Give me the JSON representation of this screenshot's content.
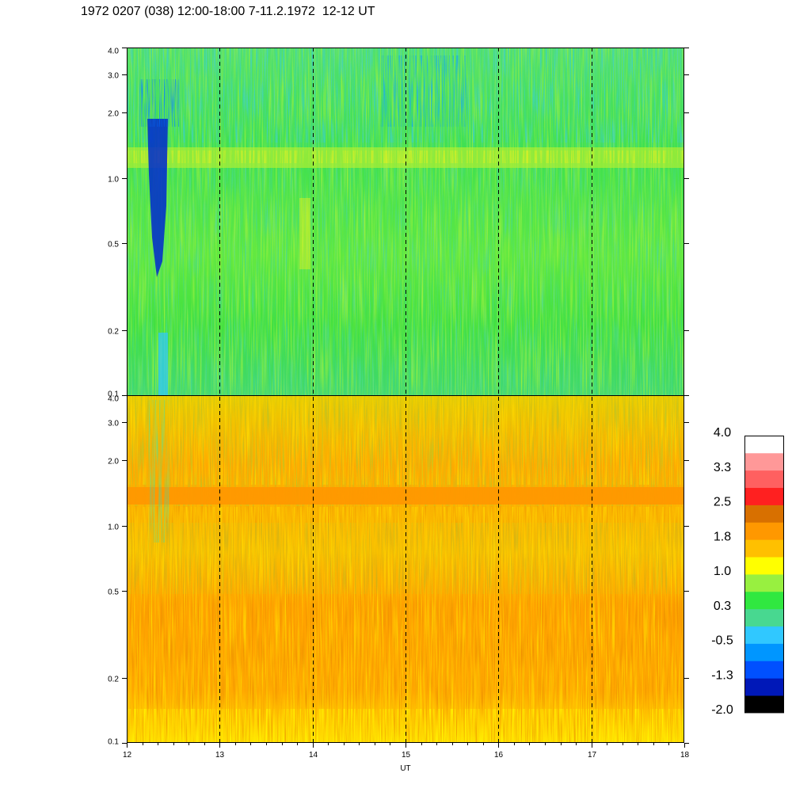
{
  "header": {
    "title": "1972 0207 (038) 12:00-18:00 7-11.2.1972  12-12 UT"
  },
  "colorbar": {
    "colors": [
      "#000000",
      "#0018b8",
      "#0050ff",
      "#0096ff",
      "#30c8ff",
      "#48d890",
      "#30e840",
      "#98f040",
      "#ffff00",
      "#ffc000",
      "#ff9800",
      "#d87000",
      "#ff2020",
      "#ff6060",
      "#ff9898",
      "#ffffff"
    ],
    "labels": [
      "4.0",
      "3.3",
      "2.5",
      "1.8",
      "1.0",
      "0.3",
      "-0.5",
      "-1.3",
      "-2.0"
    ]
  },
  "chart_data": {
    "type": "heatmap",
    "xlabel": "UT",
    "x_ticks": [
      "12",
      "13",
      "14",
      "15",
      "16",
      "17",
      "18"
    ],
    "xlim": [
      12,
      18
    ],
    "dashed_gridlines_x": [
      13,
      14,
      15,
      16,
      17
    ],
    "y_scale": "log",
    "ylim": [
      0.1,
      4.0
    ],
    "panels": [
      {
        "name": "",
        "y_ticks": [
          "4.0",
          "3.0",
          "2.0",
          "1.0",
          "0.5",
          "0.2",
          "0.1"
        ],
        "y_tick_values": [
          4.0,
          3.0,
          2.0,
          1.0,
          0.5,
          0.2,
          0.1
        ],
        "dominant_level": 0.3,
        "features": [
          {
            "y": 1.25,
            "level": 1.0
          },
          {
            "x": [
              12.2,
              12.45
            ],
            "y": [
              0.3,
              2.0
            ],
            "level": -1.3
          }
        ]
      },
      {
        "name": "",
        "y_ticks": [
          "4.0",
          "3.0",
          "2.0",
          "1.0",
          "0.5",
          "0.2",
          "0.1"
        ],
        "y_tick_values": [
          4.0,
          3.0,
          2.0,
          1.0,
          0.5,
          0.2,
          0.1
        ],
        "dominant_level": 1.8,
        "features": [
          {
            "y": 1.4,
            "level": 1.8
          },
          {
            "y": 0.1,
            "level": 1.0
          }
        ]
      }
    ]
  }
}
